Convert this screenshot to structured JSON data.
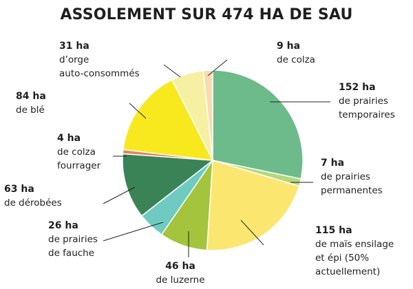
{
  "chart_data": {
    "type": "pie",
    "title": "ASSOLEMENT SUR 474 HA DE SAU",
    "slices": [
      {
        "value": 152,
        "value_label": "152 ha",
        "label_lines": [
          "de prairies",
          "temporaires"
        ],
        "color": "#6dbb8a"
      },
      {
        "value": 7,
        "value_label": "7 ha",
        "label_lines": [
          "de prairies",
          "permanentes"
        ],
        "color": "#b5d77a"
      },
      {
        "value": 115,
        "value_label": "115 ha",
        "label_lines": [
          "de maïs ensilage",
          "et épi (50%",
          "actuellement)"
        ],
        "color": "#fbe770"
      },
      {
        "value": 46,
        "value_label": "46 ha",
        "label_lines": [
          "de luzerne"
        ],
        "color": "#a3c43c"
      },
      {
        "value": 26,
        "value_label": "26 ha",
        "label_lines": [
          "de prairies",
          "de fauche"
        ],
        "color": "#6fcbc1"
      },
      {
        "value": 63,
        "value_label": "63 ha",
        "label_lines": [
          "de dérobées"
        ],
        "color": "#3a8357"
      },
      {
        "value": 4,
        "value_label": "4 ha",
        "label_lines": [
          "de colza",
          "fourrager"
        ],
        "color": "#e0845a"
      },
      {
        "value": 84,
        "value_label": "84 ha",
        "label_lines": [
          "de blé"
        ],
        "color": "#f8e81e"
      },
      {
        "value": 31,
        "value_label": "31 ha",
        "label_lines": [
          "d’orge",
          "auto-consommés"
        ],
        "color": "#f5f0a2"
      },
      {
        "value": 9,
        "value_label": "9 ha",
        "label_lines": [
          "de colza"
        ],
        "color": "#f8dcb0"
      }
    ]
  }
}
